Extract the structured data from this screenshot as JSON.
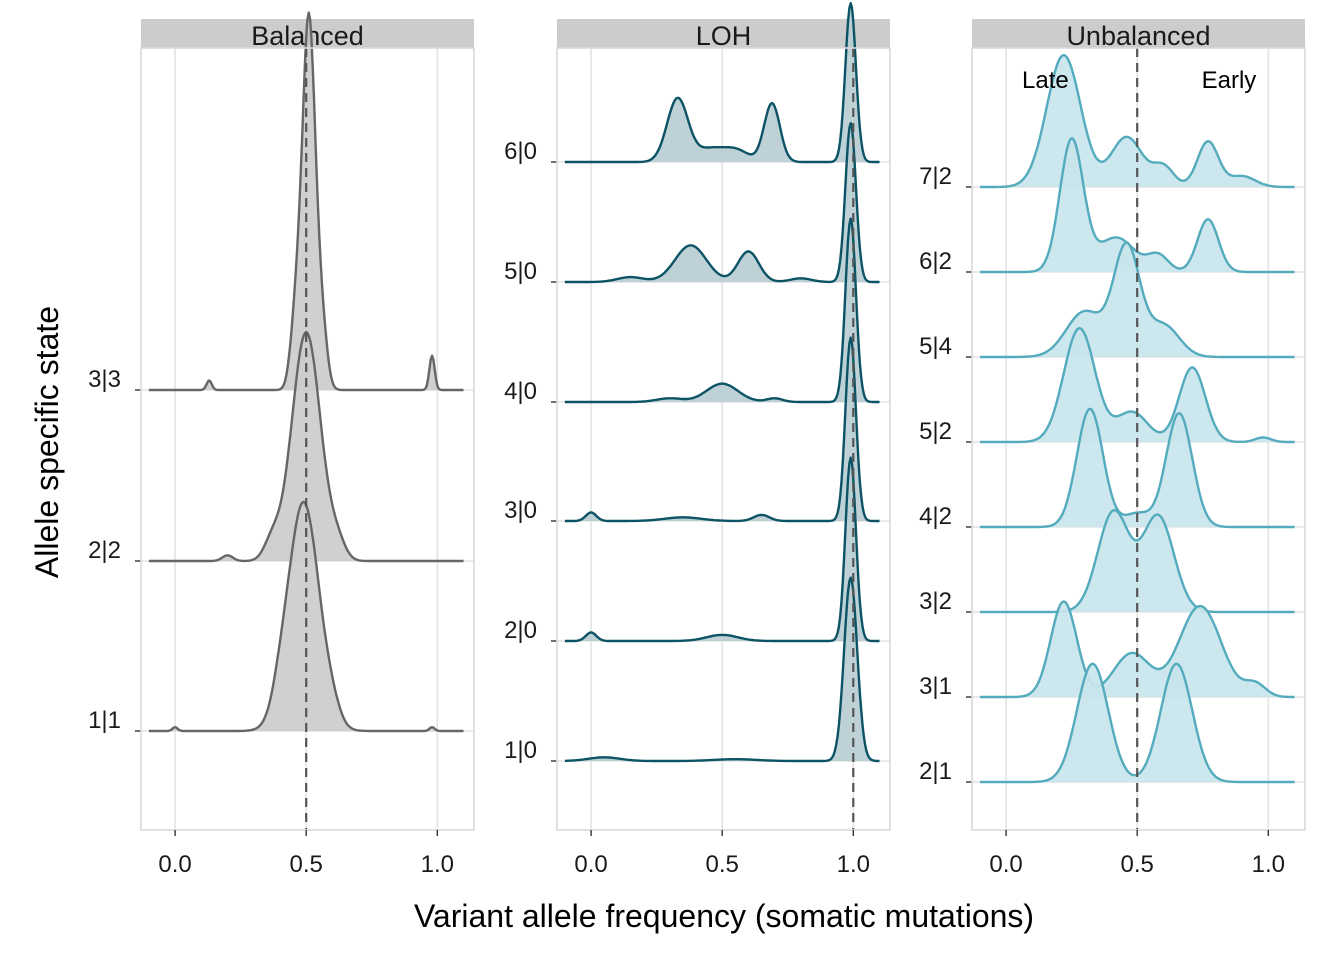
{
  "chart_data": {
    "type": "ridgeline",
    "xlabel": "Variant allele frequency (somatic mutations)",
    "ylabel": "Allele specific state",
    "xlim": [
      -0.13,
      1.14
    ],
    "x_ticks": [
      0.0,
      0.5,
      1.0
    ],
    "x_tick_labels": [
      "0.0",
      "0.5",
      "1.0"
    ],
    "grid": true,
    "panels": [
      {
        "name": "Balanced",
        "color": "#666666",
        "fill": "#cccccc",
        "expected_vaf": 0.5,
        "row_count": 4.1,
        "states": [
          {
            "label": "1|1",
            "peaks": [
              [
                0.49,
                0.06,
                1.2
              ],
              [
                0.4,
                0.03,
                0.08
              ],
              [
                0.6,
                0.03,
                0.06
              ],
              [
                0.0,
                0.01,
                0.02
              ],
              [
                0.98,
                0.01,
                0.02
              ]
            ]
          },
          {
            "label": "2|2",
            "peaks": [
              [
                0.5,
                0.055,
                1.2
              ],
              [
                0.37,
                0.03,
                0.1
              ],
              [
                0.62,
                0.03,
                0.08
              ],
              [
                0.2,
                0.02,
                0.03
              ]
            ]
          },
          {
            "label": "3|3",
            "peaks": [
              [
                0.51,
                0.025,
                1.95
              ],
              [
                0.46,
                0.02,
                0.35
              ],
              [
                0.56,
                0.02,
                0.3
              ],
              [
                0.13,
                0.01,
                0.05
              ],
              [
                0.98,
                0.01,
                0.18
              ]
            ]
          }
        ]
      },
      {
        "name": "LOH",
        "color": "#0c5366",
        "fill": "#b7cdd2",
        "expected_vaf": 1.0,
        "row_count": 6.4,
        "states": [
          {
            "label": "1|0",
            "peaks": [
              [
                0.99,
                0.025,
                1.5
              ],
              [
                0.05,
                0.06,
                0.03
              ],
              [
                0.55,
                0.08,
                0.015
              ]
            ]
          },
          {
            "label": "2|0",
            "peaks": [
              [
                0.99,
                0.02,
                1.5
              ],
              [
                0.0,
                0.02,
                0.07
              ],
              [
                0.5,
                0.06,
                0.05
              ]
            ]
          },
          {
            "label": "3|0",
            "peaks": [
              [
                0.99,
                0.02,
                1.5
              ],
              [
                0.0,
                0.02,
                0.07
              ],
              [
                0.35,
                0.07,
                0.03
              ],
              [
                0.65,
                0.03,
                0.05
              ]
            ]
          },
          {
            "label": "4|0",
            "peaks": [
              [
                0.99,
                0.02,
                1.5
              ],
              [
                0.5,
                0.06,
                0.15
              ],
              [
                0.3,
                0.05,
                0.03
              ],
              [
                0.7,
                0.03,
                0.03
              ]
            ]
          },
          {
            "label": "5|0",
            "peaks": [
              [
                0.99,
                0.02,
                1.3
              ],
              [
                0.38,
                0.06,
                0.3
              ],
              [
                0.6,
                0.04,
                0.25
              ],
              [
                0.15,
                0.05,
                0.04
              ],
              [
                0.8,
                0.04,
                0.03
              ]
            ]
          },
          {
            "label": "6|0",
            "peaks": [
              [
                0.99,
                0.02,
                1.3
              ],
              [
                0.33,
                0.04,
                0.52
              ],
              [
                0.69,
                0.03,
                0.48
              ],
              [
                0.45,
                0.05,
                0.1
              ],
              [
                0.55,
                0.05,
                0.1
              ]
            ]
          }
        ]
      },
      {
        "name": "Unbalanced",
        "color": "#53abbd",
        "fill": "#c8e5eb",
        "expected_vaf": 0.5,
        "row_count": 8.6,
        "annotations": [
          {
            "text": "Late",
            "x": 0.15
          },
          {
            "text": "Early",
            "x": 0.85
          }
        ],
        "states": [
          {
            "label": "2|1",
            "peaks": [
              [
                0.33,
                0.06,
                1.3
              ],
              [
                0.65,
                0.06,
                1.3
              ]
            ]
          },
          {
            "label": "3|1",
            "peaks": [
              [
                0.22,
                0.05,
                1.05
              ],
              [
                0.48,
                0.07,
                0.48
              ],
              [
                0.74,
                0.08,
                1.0
              ],
              [
                0.95,
                0.04,
                0.14
              ]
            ]
          },
          {
            "label": "3|2",
            "peaks": [
              [
                0.41,
                0.06,
                1.1
              ],
              [
                0.58,
                0.06,
                1.05
              ]
            ]
          },
          {
            "label": "4|2",
            "peaks": [
              [
                0.32,
                0.05,
                1.3
              ],
              [
                0.66,
                0.05,
                1.25
              ],
              [
                0.5,
                0.05,
                0.15
              ]
            ]
          },
          {
            "label": "5|2",
            "peaks": [
              [
                0.28,
                0.06,
                1.25
              ],
              [
                0.71,
                0.05,
                0.82
              ],
              [
                0.48,
                0.06,
                0.33
              ],
              [
                0.98,
                0.03,
                0.05
              ]
            ]
          },
          {
            "label": "5|4",
            "peaks": [
              [
                0.46,
                0.05,
                1.2
              ],
              [
                0.3,
                0.07,
                0.5
              ],
              [
                0.6,
                0.06,
                0.35
              ]
            ]
          },
          {
            "label": "6|2",
            "peaks": [
              [
                0.25,
                0.045,
                1.45
              ],
              [
                0.77,
                0.04,
                0.58
              ],
              [
                0.42,
                0.07,
                0.38
              ],
              [
                0.58,
                0.04,
                0.18
              ]
            ]
          },
          {
            "label": "7|2",
            "peaks": [
              [
                0.22,
                0.065,
                1.45
              ],
              [
                0.46,
                0.06,
                0.55
              ],
              [
                0.77,
                0.04,
                0.5
              ],
              [
                0.6,
                0.04,
                0.22
              ],
              [
                0.9,
                0.05,
                0.12
              ]
            ]
          }
        ]
      }
    ]
  }
}
